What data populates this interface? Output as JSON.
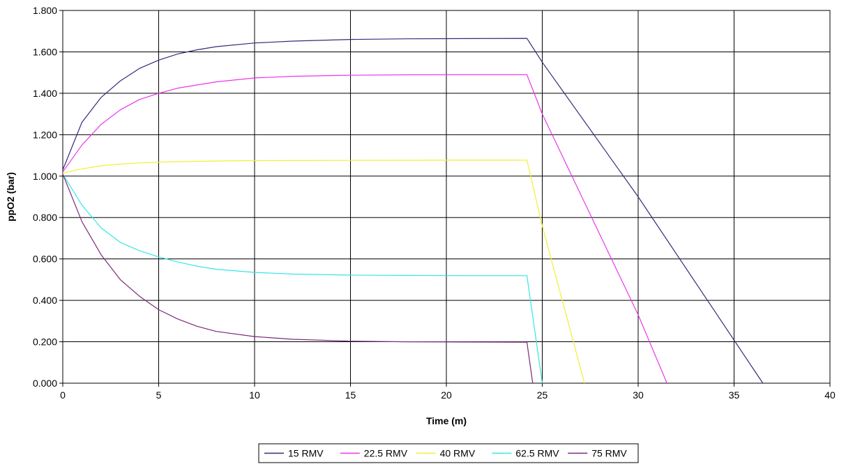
{
  "chart_data": {
    "type": "line",
    "title": "",
    "xlabel": "Time (m)",
    "ylabel": "ppO2 (bar)",
    "xlim": [
      0,
      40
    ],
    "ylim": [
      0,
      1.8
    ],
    "x_ticks": [
      0,
      5,
      10,
      15,
      20,
      25,
      30,
      35,
      40
    ],
    "x_tick_labels": [
      "0",
      "5",
      "10",
      "15",
      "20",
      "25",
      "30",
      "35",
      "40"
    ],
    "y_ticks": [
      0,
      0.2,
      0.4,
      0.6,
      0.8,
      1.0,
      1.2,
      1.4,
      1.6,
      1.8
    ],
    "y_tick_labels": [
      "0.000",
      "0.200",
      "0.400",
      "0.600",
      "0.800",
      "1.000",
      "1.200",
      "1.400",
      "1.600",
      "1.800"
    ],
    "grid": true,
    "legend_position": "bottom",
    "series": [
      {
        "name": "15 RMV",
        "color": "#2e2e7a",
        "x": [
          0,
          1,
          2,
          3,
          4,
          5,
          6,
          7,
          8,
          10,
          12,
          15,
          18,
          21,
          24.2,
          25,
          30,
          36.5
        ],
        "y": [
          1.03,
          1.26,
          1.38,
          1.46,
          1.52,
          1.56,
          1.59,
          1.61,
          1.625,
          1.643,
          1.652,
          1.66,
          1.663,
          1.664,
          1.665,
          1.55,
          0.9,
          0.0
        ]
      },
      {
        "name": "22.5 RMV",
        "color": "#e838e8",
        "x": [
          0,
          1,
          2,
          3,
          4,
          5,
          6,
          7,
          8,
          10,
          12,
          15,
          18,
          21,
          24.2,
          25,
          30,
          31.5
        ],
        "y": [
          1.02,
          1.15,
          1.25,
          1.32,
          1.37,
          1.4,
          1.425,
          1.44,
          1.455,
          1.474,
          1.482,
          1.487,
          1.489,
          1.49,
          1.49,
          1.3,
          0.33,
          0.0
        ]
      },
      {
        "name": "40 RMV",
        "color": "#f0f032",
        "x": [
          0,
          1,
          2,
          3,
          4,
          5,
          6,
          8,
          10,
          15,
          20,
          24.2,
          25,
          27.2
        ],
        "y": [
          1.015,
          1.035,
          1.05,
          1.058,
          1.064,
          1.067,
          1.07,
          1.073,
          1.075,
          1.076,
          1.077,
          1.077,
          0.76,
          0.0
        ]
      },
      {
        "name": "62.5 RMV",
        "color": "#35e6e6",
        "x": [
          0,
          1,
          2,
          3,
          4,
          5,
          6,
          7,
          8,
          10,
          12,
          15,
          18,
          21,
          24.2,
          25
        ],
        "y": [
          1.01,
          0.86,
          0.75,
          0.68,
          0.64,
          0.61,
          0.585,
          0.565,
          0.55,
          0.535,
          0.527,
          0.522,
          0.52,
          0.519,
          0.519,
          0.0
        ]
      },
      {
        "name": "75 RMV",
        "color": "#7a2a7a",
        "x": [
          0,
          1,
          2,
          3,
          4,
          5,
          6,
          7,
          8,
          10,
          12,
          15,
          18,
          21,
          24.2,
          24.5
        ],
        "y": [
          1.01,
          0.78,
          0.62,
          0.5,
          0.42,
          0.355,
          0.31,
          0.275,
          0.25,
          0.225,
          0.212,
          0.203,
          0.2,
          0.199,
          0.198,
          0.0
        ]
      }
    ]
  }
}
